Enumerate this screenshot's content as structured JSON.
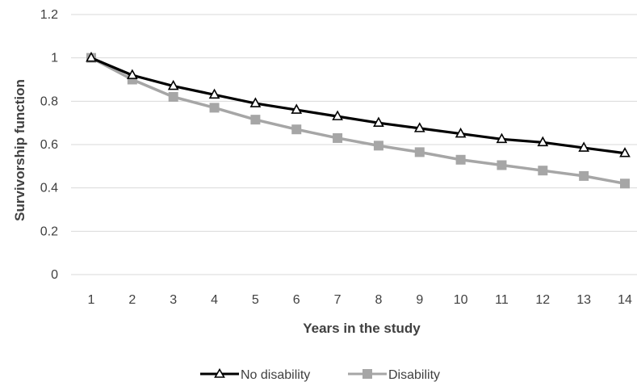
{
  "chart_data": {
    "type": "line",
    "title": "",
    "xlabel": "Years in the study",
    "ylabel": "Survivorship function",
    "x": [
      1,
      2,
      3,
      4,
      5,
      6,
      7,
      8,
      9,
      10,
      11,
      12,
      13,
      14
    ],
    "xlim": [
      1,
      14
    ],
    "ylim": [
      0,
      1.2
    ],
    "yticks": [
      "0",
      "0.2",
      "0.4",
      "0.6",
      "0.8",
      "1",
      "1.2"
    ],
    "xticks": [
      "1",
      "2",
      "3",
      "4",
      "5",
      "6",
      "7",
      "8",
      "9",
      "10",
      "11",
      "12",
      "13",
      "14"
    ],
    "grid": "horizontal",
    "legend_position": "bottom",
    "series": [
      {
        "name": "No disability",
        "color": "#000000",
        "marker": "triangle-open",
        "values": [
          1.0,
          0.92,
          0.87,
          0.83,
          0.79,
          0.76,
          0.73,
          0.7,
          0.675,
          0.65,
          0.625,
          0.61,
          0.585,
          0.56
        ]
      },
      {
        "name": "Disability",
        "color": "#a6a6a6",
        "marker": "square",
        "values": [
          1.0,
          0.9,
          0.82,
          0.77,
          0.715,
          0.67,
          0.63,
          0.595,
          0.565,
          0.53,
          0.505,
          0.48,
          0.455,
          0.42
        ]
      }
    ]
  }
}
